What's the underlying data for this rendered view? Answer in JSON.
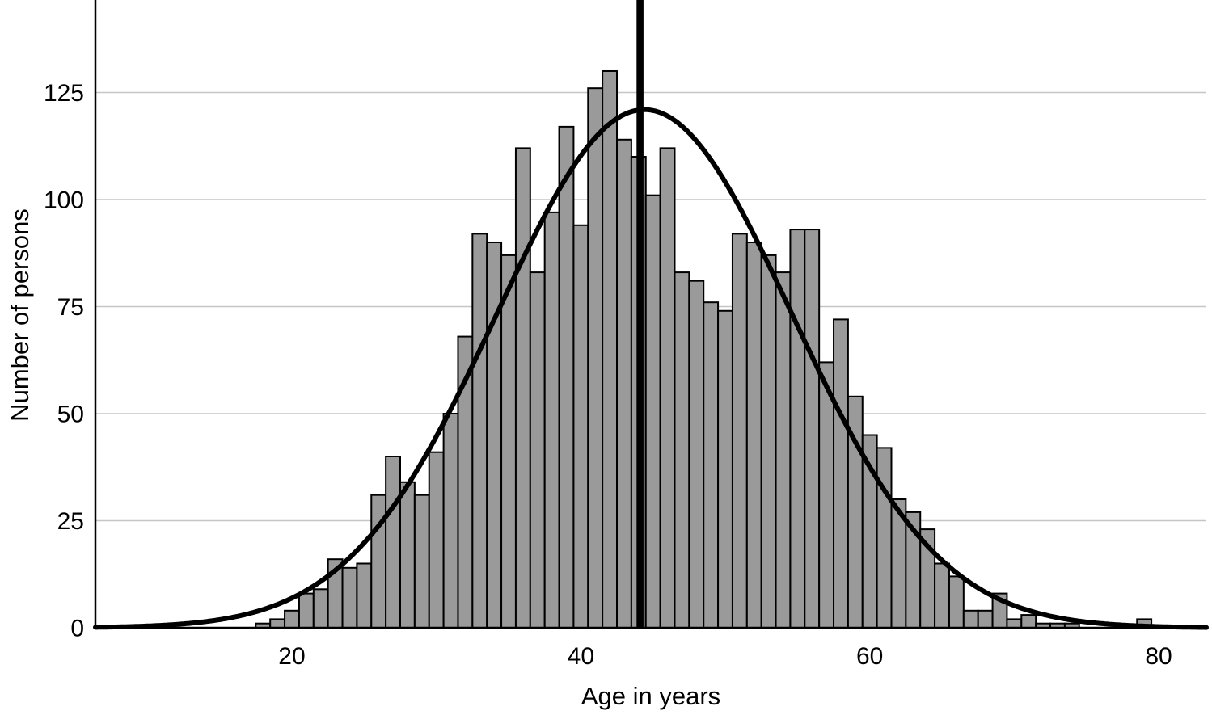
{
  "chart_data": {
    "type": "bar",
    "subtype": "histogram-with-normal-curve",
    "title": "",
    "xlabel": "Age in years",
    "ylabel": "Number of persons",
    "bin_width_years": 1,
    "x": [
      18,
      19,
      20,
      21,
      22,
      23,
      24,
      25,
      26,
      27,
      28,
      29,
      30,
      31,
      32,
      33,
      34,
      35,
      36,
      37,
      38,
      39,
      40,
      41,
      42,
      43,
      44,
      45,
      46,
      47,
      48,
      49,
      50,
      51,
      52,
      53,
      54,
      55,
      56,
      57,
      58,
      59,
      60,
      61,
      62,
      63,
      64,
      65,
      66,
      67,
      68,
      69,
      70,
      71,
      72,
      73,
      74,
      75,
      76,
      77,
      78,
      79
    ],
    "values": [
      1,
      2,
      4,
      8,
      9,
      16,
      14,
      15,
      31,
      40,
      34,
      31,
      41,
      50,
      68,
      92,
      90,
      87,
      112,
      83,
      97,
      117,
      94,
      126,
      130,
      114,
      110,
      101,
      112,
      83,
      81,
      76,
      74,
      92,
      90,
      87,
      83,
      93,
      93,
      62,
      72,
      54,
      45,
      42,
      30,
      27,
      23,
      15,
      12,
      4,
      4,
      8,
      2,
      3,
      1,
      1,
      1,
      0,
      0,
      0,
      0,
      2
    ],
    "x_ticks": [
      20,
      40,
      60,
      80
    ],
    "y_ticks": [
      0,
      25,
      50,
      75,
      100,
      125
    ],
    "xlim": [
      6.4,
      83.3
    ],
    "ylim": [
      0,
      146.6
    ],
    "grid": "horizontal-gridlines-on",
    "legend": "none",
    "overlays": {
      "normal_curve": {
        "mean": 44.4,
        "sd": 10.2,
        "peak": 121
      },
      "mean_line": {
        "x": 44.1
      }
    },
    "colors": {
      "bar_fill": "#9a9a9a",
      "bar_border": "#000000",
      "gridline": "#c6c6c6",
      "axis_line": "#000000",
      "curve": "#000000",
      "mean_line": "#000000",
      "background": "#ffffff",
      "text": "#000000"
    }
  }
}
